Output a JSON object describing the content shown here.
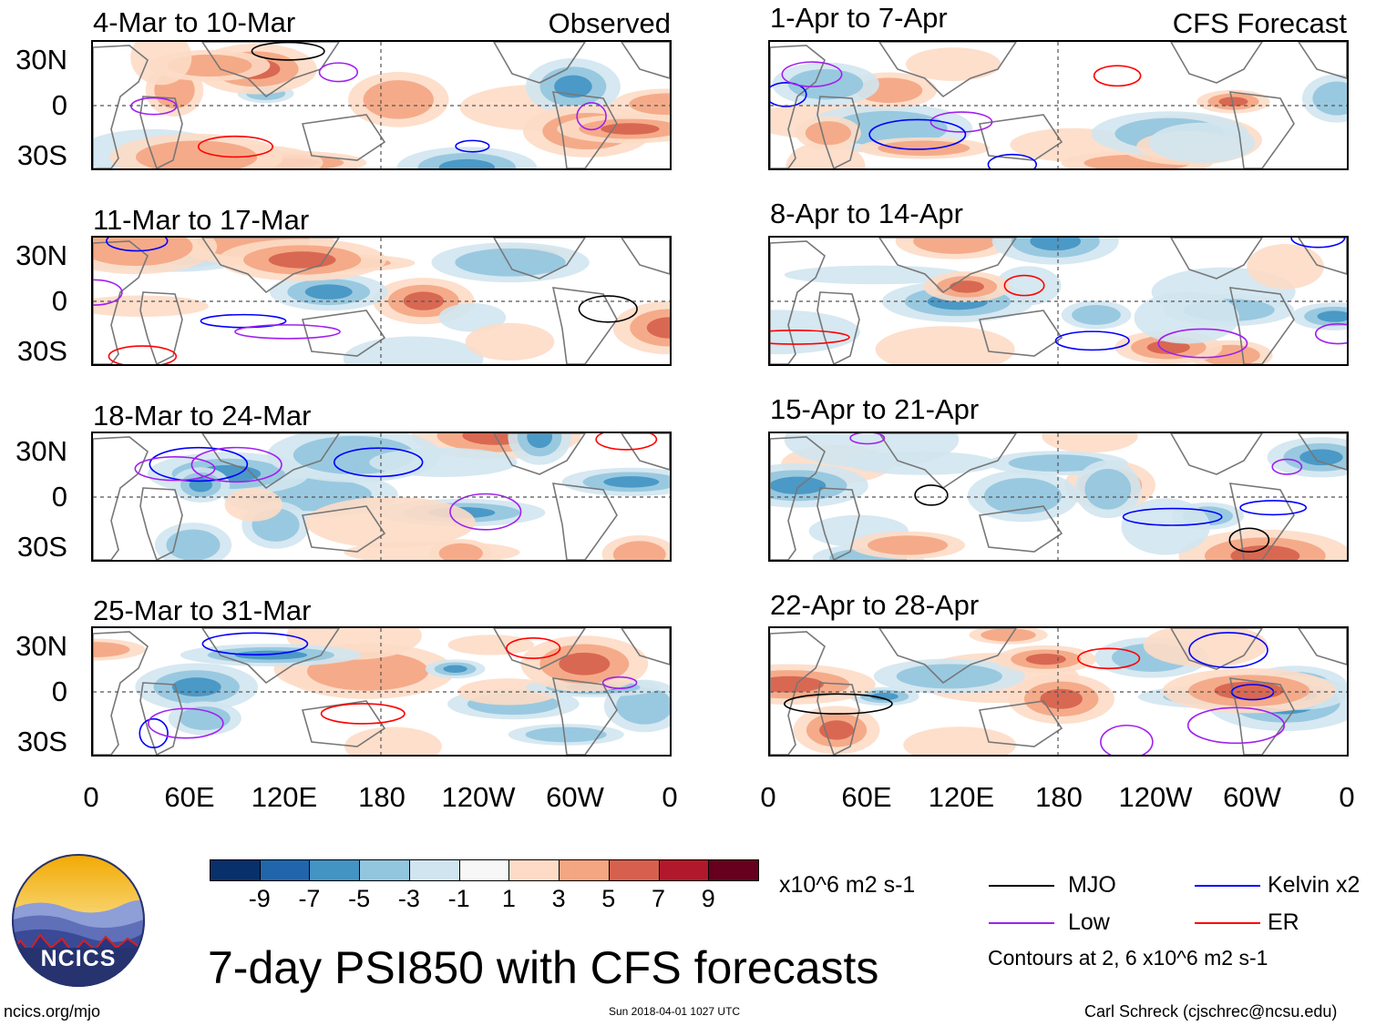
{
  "columns": {
    "observed_label": "Observed",
    "forecast_label": "CFS Forecast"
  },
  "panels": {
    "observed": [
      {
        "title": "4-Mar to 10-Mar"
      },
      {
        "title": "11-Mar to 17-Mar"
      },
      {
        "title": "18-Mar to 24-Mar"
      },
      {
        "title": "25-Mar to 31-Mar"
      }
    ],
    "forecast": [
      {
        "title": "1-Apr to 7-Apr"
      },
      {
        "title": "8-Apr to 14-Apr"
      },
      {
        "title": "15-Apr to 21-Apr"
      },
      {
        "title": "22-Apr to 28-Apr"
      }
    ]
  },
  "axes": {
    "lat_labels": [
      "30N",
      "0",
      "30S"
    ],
    "lon_labels": [
      "0",
      "60E",
      "120E",
      "180",
      "120W",
      "60W",
      "0"
    ]
  },
  "colorbar": {
    "unit": "x10^6 m2 s-1",
    "colors": [
      "#08306b",
      "#2166ac",
      "#4393c3",
      "#92c5de",
      "#d1e5f0",
      "#f7f7f7",
      "#fddbc7",
      "#f4a582",
      "#d6604d",
      "#b2182b",
      "#67001f"
    ],
    "labels": [
      "-9",
      "-7",
      "-5",
      "-3",
      "-1",
      "1",
      "3",
      "5",
      "7",
      "9"
    ]
  },
  "legend": {
    "items": [
      {
        "label": "MJO",
        "color": "#000000"
      },
      {
        "label": "Kelvin x2",
        "color": "#0000ff"
      },
      {
        "label": "Low",
        "color": "#a020f0"
      },
      {
        "label": "ER",
        "color": "#ff0000"
      }
    ],
    "note": "Contours at 2, 6 x10^6 m2 s-1"
  },
  "main_title": "7-day PSI850 with CFS forecasts",
  "logo": {
    "text": "NCICS"
  },
  "footer": {
    "left": "ncics.org/mjo",
    "center": "Sun 2018-04-01 1027 UTC",
    "right": "Carl Schreck (cjschrec@ncsu.edu)"
  }
}
